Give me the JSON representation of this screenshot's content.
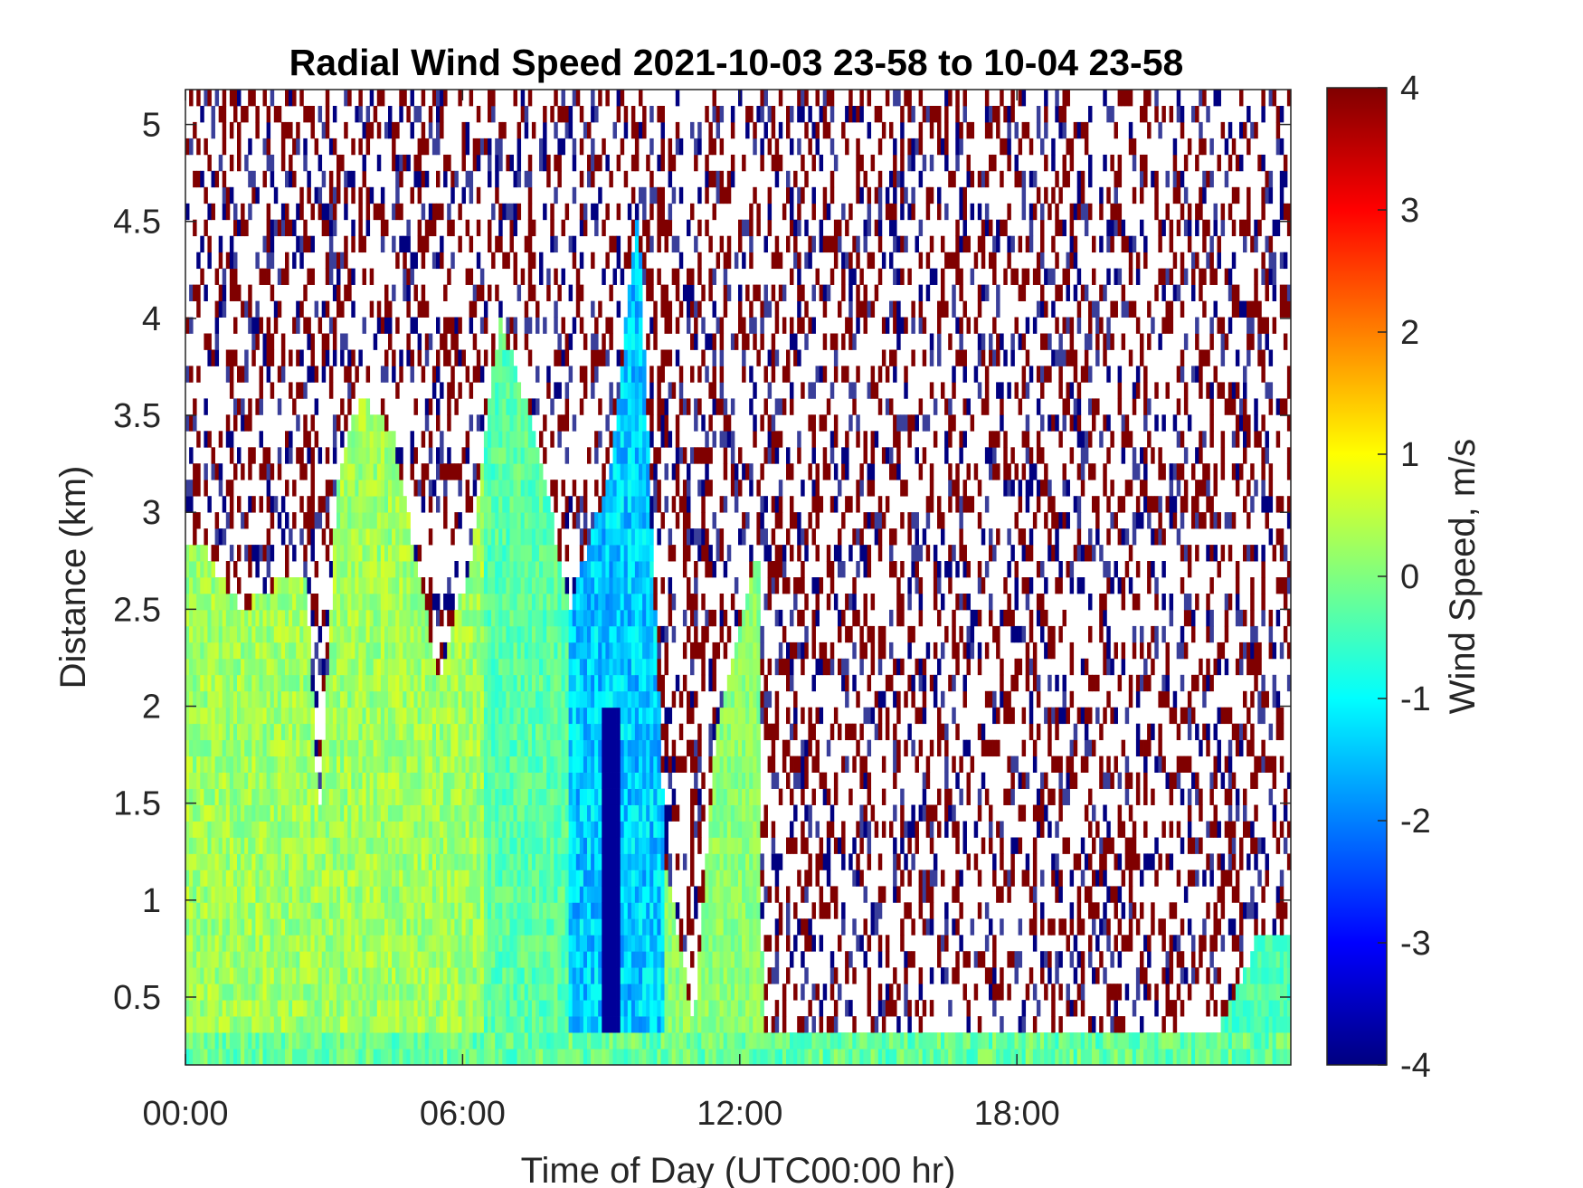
{
  "chart_data": {
    "type": "heatmap",
    "title": "Radial Wind Speed 2021-10-03 23-58 to 10-04 23-58",
    "xlabel": "Time of Day (UTC00:00 hr)",
    "ylabel": "Distance (km)",
    "colorbar_label": "Wind Speed, m/s",
    "xlim": [
      0,
      23.93
    ],
    "ylim": [
      0.15,
      5.18
    ],
    "x_ticks": [
      0,
      6,
      12,
      18
    ],
    "x_tick_labels": [
      "00:00",
      "06:00",
      "12:00",
      "18:00"
    ],
    "y_ticks": [
      0.5,
      1,
      1.5,
      2,
      2.5,
      3,
      3.5,
      4,
      4.5,
      5
    ],
    "y_tick_labels": [
      "0.5",
      "1",
      "1.5",
      "2",
      "2.5",
      "3",
      "3.5",
      "4",
      "4.5",
      "5"
    ],
    "clim": [
      -4,
      4
    ],
    "colorbar_ticks": [
      -4,
      -3,
      -2,
      -1,
      0,
      1,
      2,
      3,
      4
    ],
    "colorbar_tick_labels": [
      "-4",
      "-3",
      "-2",
      "-1",
      "0",
      "1",
      "2",
      "3",
      "4"
    ],
    "colormap": "jet",
    "grid": false,
    "signal_top_km": [
      {
        "x": 0.0,
        "top": 2.85
      },
      {
        "x": 0.3,
        "top": 2.85
      },
      {
        "x": 1.2,
        "top": 2.5
      },
      {
        "x": 1.7,
        "top": 2.6
      },
      {
        "x": 2.6,
        "top": 2.7
      },
      {
        "x": 2.9,
        "top": 1.4
      },
      {
        "x": 3.3,
        "top": 3.2
      },
      {
        "x": 3.8,
        "top": 3.6
      },
      {
        "x": 4.5,
        "top": 3.4
      },
      {
        "x": 5.5,
        "top": 2.1
      },
      {
        "x": 6.2,
        "top": 2.8
      },
      {
        "x": 6.8,
        "top": 4.0
      },
      {
        "x": 7.6,
        "top": 3.4
      },
      {
        "x": 8.3,
        "top": 2.5
      },
      {
        "x": 9.2,
        "top": 3.2
      },
      {
        "x": 9.8,
        "top": 4.6
      },
      {
        "x": 10.4,
        "top": 1.2
      },
      {
        "x": 11.0,
        "top": 0.35
      },
      {
        "x": 11.5,
        "top": 1.9
      },
      {
        "x": 12.4,
        "top": 2.8
      },
      {
        "x": 12.5,
        "top": 0.35
      },
      {
        "x": 22.4,
        "top": 0.35
      },
      {
        "x": 23.2,
        "top": 0.8
      },
      {
        "x": 23.93,
        "top": 0.8
      }
    ],
    "notable_features": [
      {
        "x_range": [
          9.0,
          9.4
        ],
        "y_range": [
          0.15,
          2.0
        ],
        "value": -3.8
      },
      {
        "x_range": [
          8.0,
          10.3
        ],
        "y_range": [
          0.35,
          4.8
        ],
        "value": -1.8
      },
      {
        "x_range": [
          0.0,
          7.8
        ],
        "y_range": [
          0.15,
          2.8
        ],
        "value": 0.3
      }
    ]
  }
}
